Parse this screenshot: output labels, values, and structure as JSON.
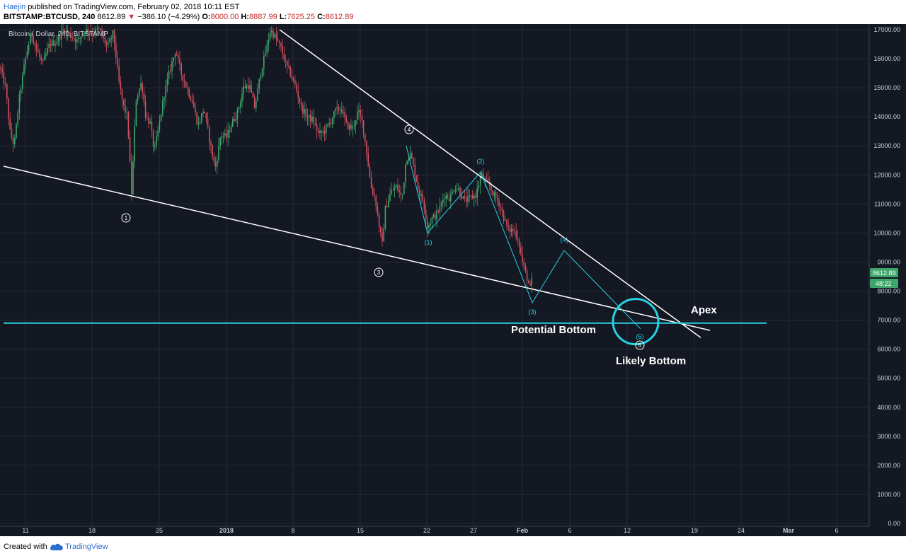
{
  "header": {
    "author": "Haejin",
    "published": " published on TradingView.com, February 02, 2018 10:11 EST",
    "symbol": "BITSTAMP:BTCUSD, 240",
    "last": "8612.89",
    "change": "−386.10 (−4.29%)",
    "o_label": "O:",
    "o": "8000.00",
    "h_label": "H:",
    "h": "8887.99",
    "l_label": "L:",
    "l": "7625.25",
    "c_label": "C:",
    "c": "8612.89"
  },
  "footer": {
    "created": "Created with",
    "brand": "TradingView"
  },
  "colors": {
    "bg": "#141823",
    "grid": "#242a37",
    "up": "#3fa66b",
    "down": "#d0505d",
    "cyan": "#27d1e0",
    "white": "#ffffff"
  },
  "chart_data": {
    "type": "candlestick",
    "title": "Bitcoin / Dollar, 240, BITSTAMP",
    "xlabel": "",
    "ylabel": "",
    "ylim": [
      0,
      17000
    ],
    "yticks": [
      "17000.00",
      "16000.00",
      "15000.00",
      "14000.00",
      "13000.00",
      "12000.00",
      "11000.00",
      "10000.00",
      "9000.00",
      "8000.00",
      "7000.00",
      "6000.00",
      "5000.00",
      "4000.00",
      "3000.00",
      "2000.00",
      "1000.00",
      "0.00"
    ],
    "xticks": [
      "11",
      "18",
      "25",
      "2018",
      "8",
      "15",
      "22",
      "27",
      "Feb",
      "6",
      "12",
      "19",
      "24",
      "Mar",
      "6"
    ],
    "last_price_label": "8612.89",
    "countdown_label": "48:22",
    "price_path": [
      [
        0,
        15700
      ],
      [
        8,
        15000
      ],
      [
        14,
        13500
      ],
      [
        20,
        13000
      ],
      [
        28,
        14800
      ],
      [
        36,
        16000
      ],
      [
        44,
        16900
      ],
      [
        52,
        16300
      ],
      [
        60,
        15800
      ],
      [
        70,
        16500
      ],
      [
        80,
        16600
      ],
      [
        90,
        17000
      ],
      [
        100,
        16800
      ],
      [
        110,
        16600
      ],
      [
        120,
        17000
      ],
      [
        130,
        16900
      ],
      [
        140,
        17000
      ],
      [
        152,
        16400
      ],
      [
        160,
        16900
      ],
      [
        168,
        15200
      ],
      [
        174,
        14400
      ],
      [
        180,
        14000
      ],
      [
        186,
        11300
      ],
      [
        192,
        14600
      ],
      [
        200,
        15200
      ],
      [
        206,
        14000
      ],
      [
        212,
        13800
      ],
      [
        218,
        12800
      ],
      [
        224,
        13600
      ],
      [
        232,
        14800
      ],
      [
        240,
        15600
      ],
      [
        248,
        16300
      ],
      [
        256,
        15500
      ],
      [
        264,
        15000
      ],
      [
        272,
        14500
      ],
      [
        280,
        13700
      ],
      [
        288,
        14300
      ],
      [
        296,
        13200
      ],
      [
        304,
        12200
      ],
      [
        312,
        13400
      ],
      [
        320,
        13300
      ],
      [
        328,
        13800
      ],
      [
        336,
        14200
      ],
      [
        344,
        15000
      ],
      [
        352,
        15100
      ],
      [
        360,
        14300
      ],
      [
        368,
        15500
      ],
      [
        376,
        16300
      ],
      [
        382,
        17000
      ],
      [
        390,
        16700
      ],
      [
        398,
        16300
      ],
      [
        404,
        15800
      ],
      [
        410,
        15500
      ],
      [
        418,
        15000
      ],
      [
        426,
        14300
      ],
      [
        434,
        14000
      ],
      [
        442,
        13900
      ],
      [
        450,
        13400
      ],
      [
        458,
        13500
      ],
      [
        466,
        13800
      ],
      [
        474,
        14200
      ],
      [
        482,
        14300
      ],
      [
        490,
        13700
      ],
      [
        498,
        13600
      ],
      [
        506,
        14200
      ],
      [
        512,
        13800
      ],
      [
        518,
        12800
      ],
      [
        524,
        11600
      ],
      [
        530,
        11200
      ],
      [
        536,
        10200
      ],
      [
        540,
        9600
      ],
      [
        544,
        10800
      ],
      [
        552,
        11400
      ],
      [
        560,
        11600
      ],
      [
        568,
        11200
      ],
      [
        574,
        12600
      ],
      [
        580,
        12700
      ],
      [
        586,
        12100
      ],
      [
        592,
        11400
      ],
      [
        598,
        11100
      ],
      [
        604,
        10200
      ],
      [
        610,
        10500
      ],
      [
        616,
        10600
      ],
      [
        622,
        10900
      ],
      [
        628,
        11300
      ],
      [
        636,
        11200
      ],
      [
        642,
        11600
      ],
      [
        648,
        11500
      ],
      [
        656,
        11100
      ],
      [
        664,
        11200
      ],
      [
        672,
        11300
      ],
      [
        680,
        12000
      ],
      [
        686,
        11800
      ],
      [
        692,
        11600
      ],
      [
        698,
        11300
      ],
      [
        706,
        11000
      ],
      [
        712,
        10500
      ],
      [
        718,
        10100
      ],
      [
        726,
        10100
      ],
      [
        732,
        9800
      ],
      [
        738,
        9000
      ],
      [
        744,
        8500
      ],
      [
        750,
        8000
      ],
      [
        752,
        8600
      ]
    ],
    "trendlines": [
      {
        "label": "upper",
        "from": [
          "Jan 6",
          "17000"
        ],
        "to": [
          "Feb 22",
          "6400"
        ]
      },
      {
        "label": "lower",
        "from": [
          "Dec 4",
          "12300"
        ],
        "to": [
          "Feb 22",
          "6600"
        ]
      }
    ],
    "support_level": 6900,
    "wave_path": [
      {
        "label": "(1)",
        "price": 10000
      },
      {
        "label": "(2)",
        "price": 12100
      },
      {
        "label": "(3)",
        "price": 7600
      },
      {
        "label": "(4)",
        "price": 9400
      },
      {
        "label": "(5)",
        "price": 6700
      }
    ],
    "annotations": {
      "w1": "1",
      "w3": "3",
      "w4": "4",
      "w5": "5",
      "potential": "Potential Bottom",
      "likely": "Likely Bottom",
      "apex": "Apex"
    }
  }
}
